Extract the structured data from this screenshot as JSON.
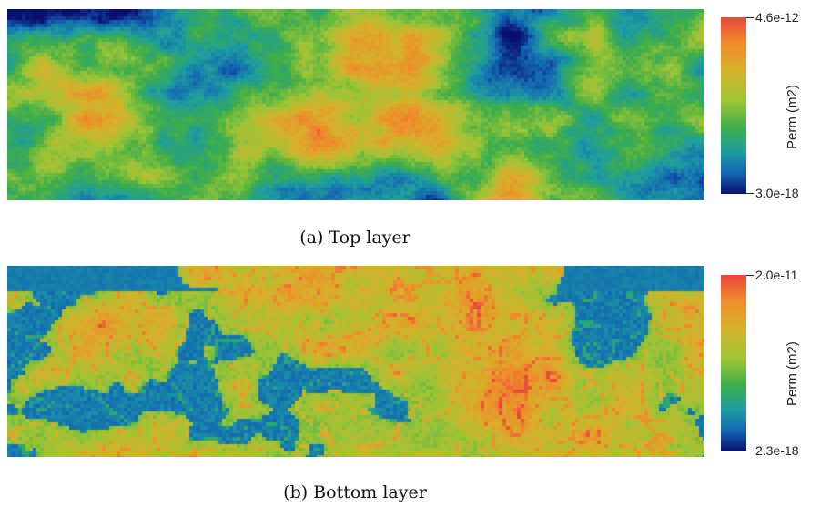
{
  "panels": [
    {
      "caption": "(a) Top layer",
      "colorbar": {
        "title": "Perm (m2)",
        "max_label": "4.6e-12",
        "min_label": "3.0e-18"
      }
    },
    {
      "caption": "(b) Bottom layer",
      "colorbar": {
        "title": "Perm (m2)",
        "max_label": "2.0e-11",
        "min_label": "2.3e-18"
      }
    }
  ],
  "colormap": [
    "#0a0f6e",
    "#1467b4",
    "#1e9ea0",
    "#3fae49",
    "#9cc537",
    "#d7b12a",
    "#f08a2c",
    "#e9453d"
  ]
}
